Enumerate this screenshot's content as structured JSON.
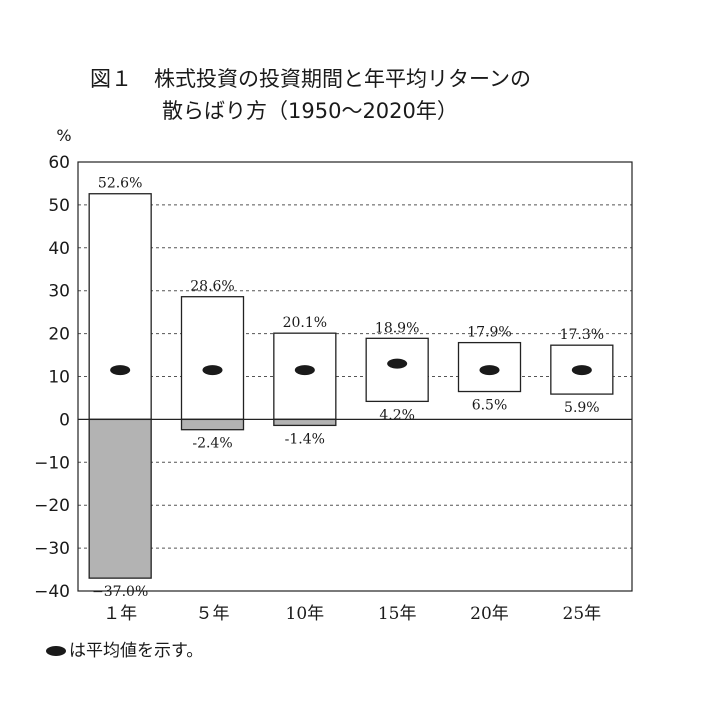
{
  "title": {
    "figure_label": "図１",
    "line1": "株式投資の投資期間と年平均リターンの",
    "line2": "散らばり方（1950～2020年）"
  },
  "note": "は平均値を示す。",
  "chart_data": {
    "type": "range-bar",
    "unit_label": "%",
    "ylim": [
      -40,
      60
    ],
    "yticks": [
      60,
      50,
      40,
      30,
      20,
      10,
      0,
      -10,
      -20,
      -30,
      -40
    ],
    "ytick_labels": [
      "60",
      "50",
      "40",
      "30",
      "20",
      "10",
      "0",
      "−10",
      "−20",
      "−30",
      "−40"
    ],
    "grid": "dashed-horizontal",
    "categories": [
      "１年",
      "５年",
      "10年",
      "15年",
      "20年",
      "25年"
    ],
    "max": [
      52.6,
      28.6,
      20.1,
      18.9,
      17.9,
      17.3
    ],
    "min": [
      -37.0,
      -2.4,
      -1.4,
      4.2,
      6.5,
      5.9
    ],
    "max_labels": [
      "52.6%",
      "28.6%",
      "20.1%",
      "18.9%",
      "17.9%",
      "17.3%"
    ],
    "min_labels": [
      "−37.0%",
      "-2.4%",
      "-1.4%",
      "4.2%",
      "6.5%",
      "5.9%"
    ],
    "mean": [
      11.5,
      11.5,
      11.5,
      13.0,
      11.5,
      11.5
    ],
    "colors": {
      "positive": "#ffffff",
      "negative": "#b3b3b3",
      "mean_marker": "#1a1a1a",
      "border": "#222222"
    }
  }
}
